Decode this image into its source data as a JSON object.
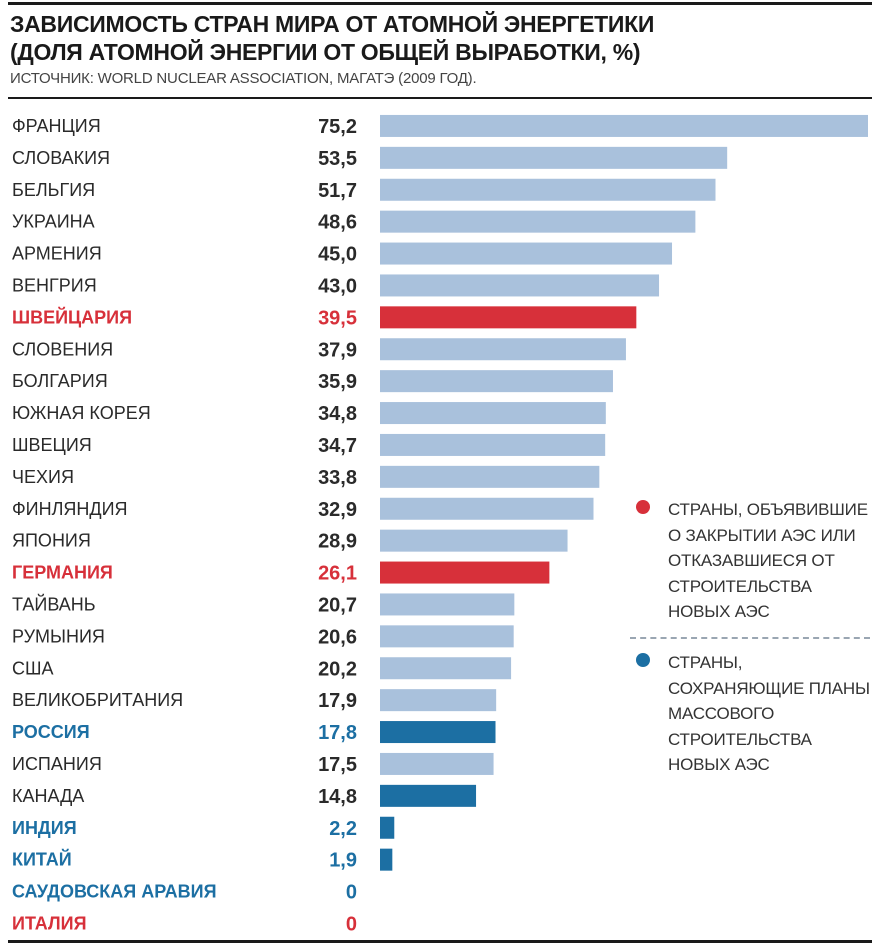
{
  "title_line1": "ЗАВИСИМОСТЬ СТРАН МИРА ОТ АТОМНОЙ ЭНЕРГЕТИКИ",
  "title_line2": "(ДОЛЯ АТОМНОЙ ЭНЕРГИИ ОТ ОБЩЕЙ ВЫРАБОТКИ, %)",
  "source": "ИСТОЧНИК: WORLD NUCLEAR ASSOCIATION, МАГАТЭ (2009 ГОД).",
  "colors": {
    "default_bar": "#a9c1dc",
    "closing": "#d7303a",
    "expanding": "#1c6fa3",
    "default_text": "#2a2a2a"
  },
  "legend": [
    {
      "group": "closing",
      "text": "СТРАНЫ, ОБЪЯВИВШИЕ О ЗАКРЫТИИ АЭС ИЛИ ОТКАЗАВШИЕСЯ ОТ СТРОИТЕЛЬСТВА НОВЫХ АЭС"
    },
    {
      "group": "expanding",
      "text": "СТРАНЫ, СОХРАНЯЮЩИЕ ПЛАНЫ МАССОВОГО СТРОИТЕЛЬСТВА НОВЫХ АЭС"
    }
  ],
  "chart_data": {
    "type": "bar",
    "orientation": "horizontal",
    "title": "ЗАВИСИМОСТЬ СТРАН МИРА ОТ АТОМНОЙ ЭНЕРГЕТИКИ (ДОЛЯ АТОМНОЙ ЭНЕРГИИ ОТ ОБЩЕЙ ВЫРАБОТКИ, %)",
    "xlim": [
      0,
      75.2
    ],
    "grid": false,
    "legend_position": "right",
    "categories": [
      "ФРАНЦИЯ",
      "СЛОВАКИЯ",
      "БЕЛЬГИЯ",
      "УКРАИНА",
      "АРМЕНИЯ",
      "ВЕНГРИЯ",
      "ШВЕЙЦАРИЯ",
      "СЛОВЕНИЯ",
      "БОЛГАРИЯ",
      "ЮЖНАЯ КОРЕЯ",
      "ШВЕЦИЯ",
      "ЧЕХИЯ",
      "ФИНЛЯНДИЯ",
      "ЯПОНИЯ",
      "ГЕРМАНИЯ",
      "ТАЙВАНЬ",
      "РУМЫНИЯ",
      "США",
      "ВЕЛИКОБРИТАНИЯ",
      "РОССИЯ",
      "ИСПАНИЯ",
      "КАНАДА",
      "ИНДИЯ",
      "КИТАЙ",
      "САУДОВСКАЯ АРАВИЯ",
      "ИТАЛИЯ"
    ],
    "values": [
      75.2,
      53.5,
      51.7,
      48.6,
      45.0,
      43.0,
      39.5,
      37.9,
      35.9,
      34.8,
      34.7,
      33.8,
      32.9,
      28.9,
      26.1,
      20.7,
      20.6,
      20.2,
      17.9,
      17.8,
      17.5,
      14.8,
      2.2,
      1.9,
      0,
      0
    ],
    "value_labels": [
      "75,2",
      "53,5",
      "51,7",
      "48,6",
      "45,0",
      "43,0",
      "39,5",
      "37,9",
      "35,9",
      "34,8",
      "34,7",
      "33,8",
      "32,9",
      "28,9",
      "26,1",
      "20,7",
      "20,6",
      "20,2",
      "17,9",
      "17,8",
      "17,5",
      "14,8",
      "2,2",
      "1,9",
      "0",
      "0"
    ],
    "label_group": [
      "default",
      "default",
      "default",
      "default",
      "default",
      "default",
      "closing",
      "default",
      "default",
      "default",
      "default",
      "default",
      "default",
      "default",
      "closing",
      "default",
      "default",
      "default",
      "default",
      "expanding",
      "default",
      "default",
      "expanding",
      "expanding",
      "expanding",
      "closing"
    ],
    "bar_group": [
      "default",
      "default",
      "default",
      "default",
      "default",
      "default",
      "closing",
      "default",
      "default",
      "default",
      "default",
      "default",
      "default",
      "default",
      "closing",
      "default",
      "default",
      "default",
      "default",
      "expanding",
      "default",
      "expanding",
      "expanding",
      "expanding",
      "expanding",
      "closing"
    ]
  }
}
